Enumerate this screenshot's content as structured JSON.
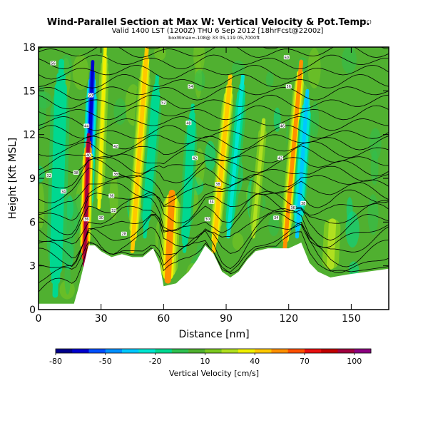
{
  "chart_data": {
    "type": "heatmap",
    "title": "Wind-Parallel Section at Max W: Vertical Velocity & Pot.Temp.",
    "title_unit": "(C)",
    "subtitle": "Valid 1400 LST (1200Z) THU 6 Sep 2012 [18hrFcst@2200z]",
    "subtitle2": "boxWmax=-108@ 33 05,119 05,7000ft",
    "xlabel": "Distance [nm]",
    "ylabel": "Height [Kft MSL]",
    "xlim": [
      0,
      168
    ],
    "ylim": [
      0,
      18
    ],
    "x_ticks": [
      0,
      30,
      60,
      90,
      120,
      150
    ],
    "y_ticks": [
      0,
      3,
      6,
      9,
      12,
      15,
      18
    ],
    "colorbar": {
      "label": "Vertical Velocity [cm/s]",
      "tick_values": [
        -80,
        -50,
        -20,
        10,
        40,
        70,
        100
      ],
      "tick_labels": [
        "-80",
        "-50",
        "-20",
        "10",
        "40",
        "70",
        "100"
      ],
      "range": [
        -80,
        110
      ],
      "colors": [
        "#00008b",
        "#0000cd",
        "#0050ff",
        "#0090ff",
        "#00c8ff",
        "#00e5d0",
        "#00d890",
        "#30c050",
        "#50b030",
        "#7cc820",
        "#b0e020",
        "#f0f000",
        "#ffc800",
        "#ff9000",
        "#ff5000",
        "#e81010",
        "#c00000",
        "#a00040",
        "#8c0080"
      ]
    },
    "w_features": [
      {
        "x": 23,
        "h0": 5,
        "h1": 17,
        "dx": 3,
        "w": -70,
        "width": 1.8
      },
      {
        "x": 22,
        "h0": 3,
        "h1": 12,
        "dx": 2,
        "w": 90,
        "width": 1.8
      },
      {
        "x": 29,
        "h0": 7,
        "h1": 18,
        "dx": 3,
        "w": 30,
        "width": 1.8
      },
      {
        "x": 45,
        "h0": 4,
        "h1": 18,
        "dx": 7,
        "w": 40,
        "width": 2.2
      },
      {
        "x": 51,
        "h0": 5,
        "h1": 16,
        "dx": 6,
        "w": -20,
        "width": 2.0
      },
      {
        "x": 62,
        "h0": 2,
        "h1": 8,
        "dx": 2,
        "w": 50,
        "width": 3.5
      },
      {
        "x": 70,
        "h0": 4,
        "h1": 14,
        "dx": 4,
        "w": -20,
        "width": 2.0
      },
      {
        "x": 84,
        "h0": 4,
        "h1": 16,
        "dx": 8,
        "w": 45,
        "width": 2.2
      },
      {
        "x": 91,
        "h0": 5,
        "h1": 16,
        "dx": 7,
        "w": -25,
        "width": 2.0
      },
      {
        "x": 118,
        "h0": 4,
        "h1": 17,
        "dx": 8,
        "w": 50,
        "width": 2.2
      },
      {
        "x": 124,
        "h0": 5,
        "h1": 15,
        "dx": 5,
        "w": -40,
        "width": 2.0
      },
      {
        "x": 103,
        "h0": 5,
        "h1": 13,
        "dx": 5,
        "w": 25,
        "width": 2.0
      },
      {
        "x": 8,
        "h0": 1,
        "h1": 17,
        "dx": 3,
        "w": -20,
        "width": 3.0
      },
      {
        "x": 140,
        "h0": 3,
        "h1": 6,
        "dx": 1,
        "w": 20,
        "width": 4.0
      }
    ],
    "terrain_kft": [
      [
        0,
        0.4
      ],
      [
        5,
        0.4
      ],
      [
        10,
        0.4
      ],
      [
        17,
        0.4
      ],
      [
        19,
        1.4
      ],
      [
        22,
        3.2
      ],
      [
        24,
        4.4
      ],
      [
        27,
        4.4
      ],
      [
        30,
        4.0
      ],
      [
        35,
        3.6
      ],
      [
        40,
        3.8
      ],
      [
        45,
        3.6
      ],
      [
        50,
        3.6
      ],
      [
        55,
        4.2
      ],
      [
        58,
        3.2
      ],
      [
        60,
        1.6
      ],
      [
        66,
        1.8
      ],
      [
        72,
        2.6
      ],
      [
        76,
        3.4
      ],
      [
        80,
        4.4
      ],
      [
        84,
        3.8
      ],
      [
        88,
        2.6
      ],
      [
        92,
        2.2
      ],
      [
        96,
        2.6
      ],
      [
        100,
        3.4
      ],
      [
        104,
        4.0
      ],
      [
        110,
        4.2
      ],
      [
        116,
        4.2
      ],
      [
        120,
        4.2
      ],
      [
        126,
        4.6
      ],
      [
        130,
        3.2
      ],
      [
        134,
        2.6
      ],
      [
        140,
        2.2
      ],
      [
        148,
        2.4
      ],
      [
        158,
        2.6
      ],
      [
        168,
        2.8
      ]
    ],
    "theta_contours": {
      "levels": [
        20,
        22,
        24,
        26,
        28,
        30,
        32,
        34,
        36,
        38,
        40,
        42,
        44,
        46,
        48,
        50,
        52,
        54,
        56,
        58,
        60,
        62,
        64,
        66,
        68,
        70
      ],
      "labels": [
        {
          "text": "36",
          "x": 23,
          "y": 6.2
        },
        {
          "text": "40",
          "x": 24,
          "y": 10.6
        },
        {
          "text": "44",
          "x": 23,
          "y": 12.6
        },
        {
          "text": "50",
          "x": 25,
          "y": 14.7
        },
        {
          "text": "32",
          "x": 5,
          "y": 9.2
        },
        {
          "text": "34",
          "x": 12,
          "y": 8.1
        },
        {
          "text": "38",
          "x": 18,
          "y": 9.4
        },
        {
          "text": "30",
          "x": 30,
          "y": 6.3
        },
        {
          "text": "32",
          "x": 36,
          "y": 6.8
        },
        {
          "text": "36",
          "x": 35,
          "y": 7.8
        },
        {
          "text": "38",
          "x": 37,
          "y": 9.3
        },
        {
          "text": "42",
          "x": 37,
          "y": 11.2
        },
        {
          "text": "56",
          "x": 7,
          "y": 16.9
        },
        {
          "text": "52",
          "x": 60,
          "y": 14.2
        },
        {
          "text": "54",
          "x": 73,
          "y": 15.3
        },
        {
          "text": "48",
          "x": 72,
          "y": 12.8
        },
        {
          "text": "42",
          "x": 75,
          "y": 10.4
        },
        {
          "text": "28",
          "x": 41,
          "y": 5.2
        },
        {
          "text": "34",
          "x": 83,
          "y": 7.4
        },
        {
          "text": "38",
          "x": 86,
          "y": 8.6
        },
        {
          "text": "30",
          "x": 81,
          "y": 6.2
        },
        {
          "text": "46",
          "x": 117,
          "y": 12.6
        },
        {
          "text": "42",
          "x": 116,
          "y": 10.4
        },
        {
          "text": "56",
          "x": 120,
          "y": 15.3
        },
        {
          "text": "60",
          "x": 119,
          "y": 17.3
        },
        {
          "text": "34",
          "x": 114,
          "y": 6.3
        },
        {
          "text": "36",
          "x": 122,
          "y": 7.0
        },
        {
          "text": "38",
          "x": 127,
          "y": 7.3
        }
      ]
    }
  }
}
